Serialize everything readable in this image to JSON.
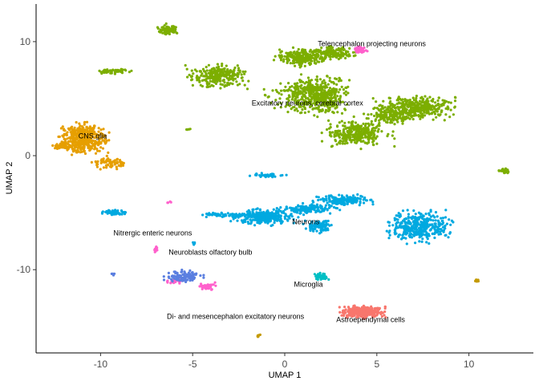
{
  "chart_data": {
    "type": "scatter",
    "xlabel": "UMAP 1",
    "ylabel": "UMAP 2",
    "xlim": [
      -13.5,
      13.5
    ],
    "ylim": [
      -17.3,
      13.3
    ],
    "x_ticks": [
      -10,
      -5,
      0,
      5,
      10
    ],
    "y_ticks": [
      10,
      0,
      -10
    ],
    "x_tick_labels": [
      "-10",
      "-5",
      "0",
      "5",
      "10"
    ],
    "y_tick_labels": [
      "10",
      "0",
      "-10"
    ],
    "grid": false,
    "legend": "none",
    "series": [
      {
        "color": "#7CAE00",
        "clusters": [
          {
            "cx": -6.3,
            "cy": 11.0,
            "rx": 0.5,
            "ry": 0.45,
            "n": 90
          },
          {
            "cx": -9.3,
            "cy": 7.4,
            "rx": 0.9,
            "ry": 0.2,
            "n": 60
          },
          {
            "cx": -3.6,
            "cy": 7.0,
            "rx": 1.4,
            "ry": 0.9,
            "n": 260
          },
          {
            "cx": 0.8,
            "cy": 8.6,
            "rx": 1.1,
            "ry": 0.7,
            "n": 220
          },
          {
            "cx": 1.9,
            "cy": 5.2,
            "rx": 1.3,
            "ry": 1.5,
            "n": 420
          },
          {
            "cx": 2.6,
            "cy": 9.0,
            "rx": 1.0,
            "ry": 0.5,
            "n": 150
          },
          {
            "cx": 0.6,
            "cy": 5.5,
            "rx": 1.4,
            "ry": 1.3,
            "n": 120
          },
          {
            "cx": 7.0,
            "cy": 4.2,
            "rx": 1.8,
            "ry": 0.9,
            "n": 380
          },
          {
            "cx": 3.9,
            "cy": 2.0,
            "rx": 1.6,
            "ry": 1.1,
            "n": 320
          },
          {
            "cx": 5.8,
            "cy": 3.4,
            "rx": 1.2,
            "ry": 0.6,
            "n": 120
          },
          {
            "cx": 11.9,
            "cy": -1.3,
            "rx": 0.3,
            "ry": 0.2,
            "n": 25
          },
          {
            "cx": -5.2,
            "cy": 2.3,
            "rx": 0.15,
            "ry": 0.1,
            "n": 5
          }
        ]
      },
      {
        "color": "#E69F00",
        "clusters": [
          {
            "cx": -10.9,
            "cy": 1.5,
            "rx": 1.1,
            "ry": 1.2,
            "n": 420
          },
          {
            "cx": -12.0,
            "cy": 0.8,
            "rx": 0.5,
            "ry": 0.3,
            "n": 60
          },
          {
            "cx": -9.5,
            "cy": -0.6,
            "rx": 0.9,
            "ry": 0.5,
            "n": 70
          }
        ]
      },
      {
        "color": "#00A9E0",
        "clusters": [
          {
            "cx": -9.2,
            "cy": -5.0,
            "rx": 0.6,
            "ry": 0.2,
            "n": 70
          },
          {
            "cx": -3.5,
            "cy": -5.2,
            "rx": 0.9,
            "ry": 0.2,
            "n": 50
          },
          {
            "cx": -1.2,
            "cy": -5.4,
            "rx": 1.5,
            "ry": 0.6,
            "n": 300
          },
          {
            "cx": 1.2,
            "cy": -4.7,
            "rx": 1.4,
            "ry": 0.4,
            "n": 150
          },
          {
            "cx": 3.2,
            "cy": -3.9,
            "rx": 1.3,
            "ry": 0.4,
            "n": 160
          },
          {
            "cx": 1.9,
            "cy": -6.2,
            "rx": 0.7,
            "ry": 0.5,
            "n": 110
          },
          {
            "cx": -0.9,
            "cy": -1.7,
            "rx": 0.8,
            "ry": 0.15,
            "n": 40
          },
          {
            "cx": 7.3,
            "cy": -6.2,
            "rx": 1.5,
            "ry": 1.2,
            "n": 380
          },
          {
            "cx": -4.9,
            "cy": -7.7,
            "rx": 0.15,
            "ry": 0.1,
            "n": 5
          }
        ]
      },
      {
        "color": "#00BFC4",
        "clusters": [
          {
            "cx": 2.0,
            "cy": -10.6,
            "rx": 0.35,
            "ry": 0.3,
            "n": 40
          }
        ]
      },
      {
        "color": "#F8766D",
        "clusters": [
          {
            "cx": 4.2,
            "cy": -13.7,
            "rx": 1.0,
            "ry": 0.45,
            "n": 360
          }
        ]
      },
      {
        "color": "#FF61CC",
        "clusters": [
          {
            "cx": 4.1,
            "cy": 9.3,
            "rx": 0.3,
            "ry": 0.3,
            "n": 70
          },
          {
            "cx": -4.2,
            "cy": -11.5,
            "rx": 0.6,
            "ry": 0.3,
            "n": 40
          },
          {
            "cx": -6.0,
            "cy": -11.0,
            "rx": 0.5,
            "ry": 0.2,
            "n": 30
          },
          {
            "cx": -7.0,
            "cy": -8.2,
            "rx": 0.1,
            "ry": 0.3,
            "n": 10
          },
          {
            "cx": -6.3,
            "cy": -4.1,
            "rx": 0.1,
            "ry": 0.1,
            "n": 4
          }
        ]
      },
      {
        "color": "#5B7FE0",
        "clusters": [
          {
            "cx": -5.5,
            "cy": -10.6,
            "rx": 0.9,
            "ry": 0.45,
            "n": 120
          },
          {
            "cx": -9.3,
            "cy": -10.4,
            "rx": 0.1,
            "ry": 0.1,
            "n": 5
          }
        ]
      },
      {
        "color": "#C49A00",
        "clusters": [
          {
            "cx": 10.4,
            "cy": -11.0,
            "rx": 0.15,
            "ry": 0.1,
            "n": 8
          },
          {
            "cx": -1.4,
            "cy": -15.8,
            "rx": 0.1,
            "ry": 0.1,
            "n": 6
          }
        ]
      }
    ],
    "annotations": [
      {
        "text": "Telencephalon projecting neurons",
        "x": 1.8,
        "y": 9.6
      },
      {
        "text": "Excitatory neurons, cerebral cortex",
        "x": -1.8,
        "y": 4.4
      },
      {
        "text": "CNS glia",
        "x": -11.2,
        "y": 1.5
      },
      {
        "text": "Neurons",
        "x": 0.4,
        "y": -6.0
      },
      {
        "text": "Nitrergic enteric neurons",
        "x": -9.3,
        "y": -7.0
      },
      {
        "text": "Neuroblasts olfactory bulb",
        "x": -6.3,
        "y": -8.7
      },
      {
        "text": "Microglia",
        "x": 0.5,
        "y": -11.5
      },
      {
        "text": "Di- and mesencephalon excitatory neurons",
        "x": -6.4,
        "y": -14.3
      },
      {
        "text": "Astroependymal cells",
        "x": 2.8,
        "y": -14.6
      }
    ]
  }
}
